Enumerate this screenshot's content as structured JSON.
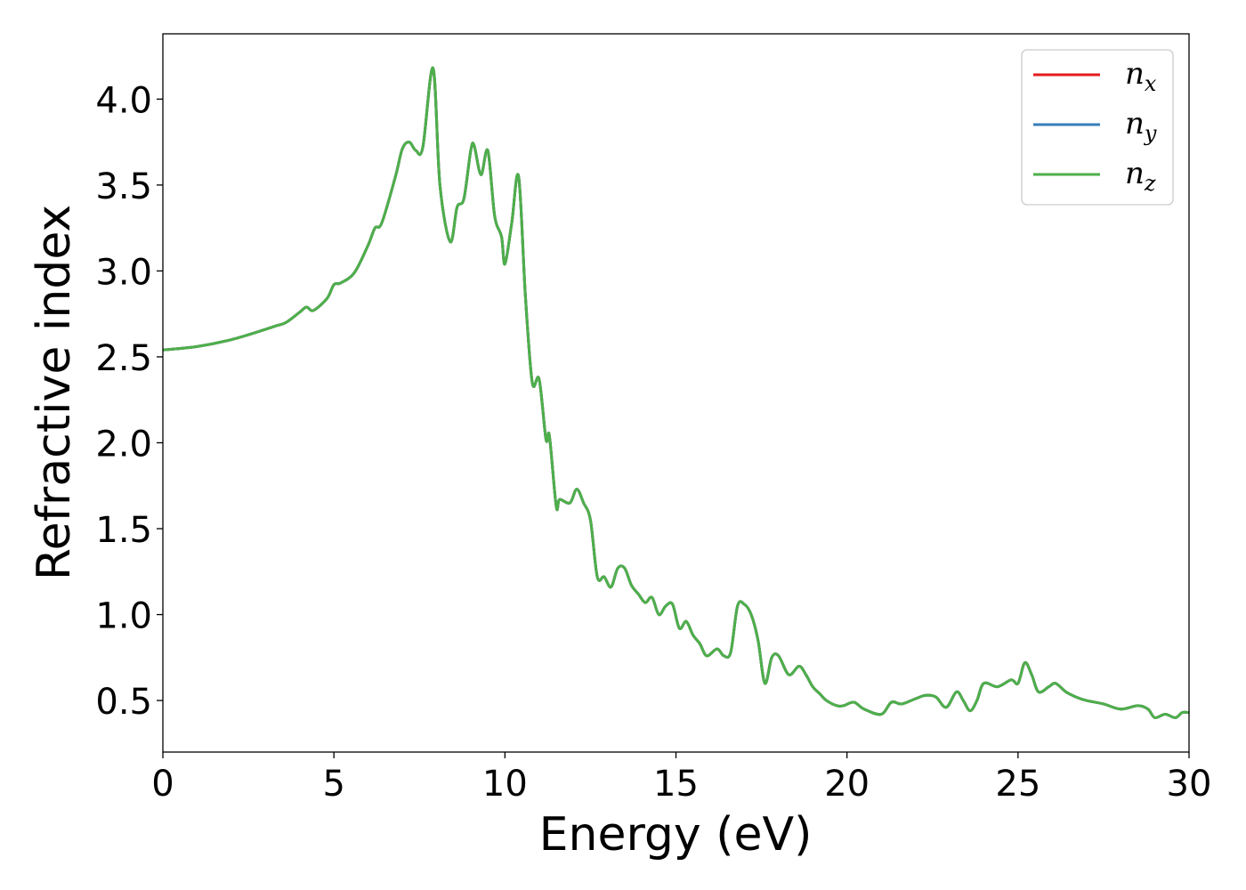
{
  "chart_data": {
    "type": "line",
    "title": "",
    "xlabel": "Energy (eV)",
    "ylabel": "Refractive index",
    "xlim": [
      0,
      30
    ],
    "ylim": [
      0.2,
      4.38
    ],
    "xticks": [
      0,
      5,
      10,
      15,
      20,
      25,
      30
    ],
    "xtick_labels": [
      "0",
      "5",
      "10",
      "15",
      "20",
      "25",
      "30"
    ],
    "yticks": [
      0.5,
      1.0,
      1.5,
      2.0,
      2.5,
      3.0,
      3.5,
      4.0
    ],
    "ytick_labels": [
      "0.5",
      "1.0",
      "1.5",
      "2.0",
      "2.5",
      "3.0",
      "3.5",
      "4.0"
    ],
    "grid": false,
    "legend_position": "top-right",
    "series": [
      {
        "name": "n_x",
        "label_base": "n",
        "label_sub": "x",
        "color": "#e41a1c"
      },
      {
        "name": "n_y",
        "label_base": "n",
        "label_sub": "y",
        "color": "#377eb8"
      },
      {
        "name": "n_z",
        "label_base": "n",
        "label_sub": "z",
        "color": "#4daf4a"
      }
    ],
    "x": [
      0,
      1,
      2,
      3,
      3.3,
      3.6,
      4,
      4.2,
      4.4,
      4.8,
      5,
      5.2,
      5.6,
      6,
      6.2,
      6.4,
      6.8,
      7,
      7.2,
      7.4,
      7.6,
      7.9,
      8.1,
      8.4,
      8.6,
      8.8,
      9.0,
      9.1,
      9.3,
      9.5,
      9.7,
      9.9,
      10.0,
      10.2,
      10.4,
      10.6,
      10.8,
      11.0,
      11.2,
      11.3,
      11.5,
      11.6,
      11.9,
      12.1,
      12.3,
      12.5,
      12.7,
      12.9,
      13.1,
      13.3,
      13.5,
      13.7,
      13.9,
      14.1,
      14.3,
      14.5,
      14.7,
      14.9,
      15.1,
      15.3,
      15.5,
      15.7,
      15.9,
      16.2,
      16.4,
      16.6,
      16.8,
      17.0,
      17.2,
      17.4,
      17.6,
      17.8,
      18.0,
      18.3,
      18.6,
      18.8,
      19.0,
      19.2,
      19.4,
      19.7,
      19.9,
      20.2,
      20.5,
      21.0,
      21.3,
      21.6,
      22.0,
      22.3,
      22.6,
      22.9,
      23.2,
      23.4,
      23.6,
      23.8,
      24.0,
      24.4,
      24.8,
      25.0,
      25.2,
      25.4,
      25.6,
      25.9,
      26.1,
      26.4,
      26.7,
      27.0,
      27.5,
      28.0,
      28.5,
      28.8,
      29.0,
      29.3,
      29.6,
      29.8,
      30
    ],
    "values": [
      2.54,
      2.56,
      2.6,
      2.66,
      2.68,
      2.7,
      2.76,
      2.79,
      2.77,
      2.84,
      2.92,
      2.93,
      2.99,
      3.15,
      3.25,
      3.28,
      3.55,
      3.71,
      3.75,
      3.7,
      3.72,
      4.18,
      3.5,
      3.17,
      3.37,
      3.42,
      3.7,
      3.73,
      3.56,
      3.7,
      3.32,
      3.2,
      3.04,
      3.28,
      3.55,
      2.85,
      2.35,
      2.37,
      2.02,
      2.04,
      1.63,
      1.67,
      1.65,
      1.73,
      1.65,
      1.55,
      1.22,
      1.22,
      1.16,
      1.27,
      1.27,
      1.17,
      1.12,
      1.07,
      1.1,
      1.0,
      1.05,
      1.06,
      0.92,
      0.96,
      0.88,
      0.83,
      0.76,
      0.8,
      0.76,
      0.78,
      1.05,
      1.06,
      1.0,
      0.85,
      0.6,
      0.75,
      0.76,
      0.65,
      0.7,
      0.65,
      0.58,
      0.54,
      0.5,
      0.47,
      0.47,
      0.49,
      0.45,
      0.42,
      0.49,
      0.48,
      0.51,
      0.53,
      0.52,
      0.46,
      0.55,
      0.5,
      0.44,
      0.5,
      0.6,
      0.58,
      0.62,
      0.6,
      0.72,
      0.65,
      0.55,
      0.58,
      0.6,
      0.55,
      0.52,
      0.5,
      0.48,
      0.45,
      0.47,
      0.45,
      0.4,
      0.42,
      0.4,
      0.43,
      0.43
    ]
  }
}
